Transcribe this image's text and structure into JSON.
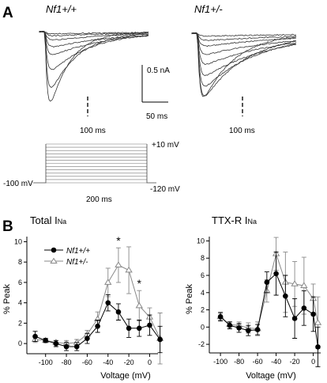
{
  "panelA": {
    "letter": "A",
    "genotype_left": "Nf1+/+",
    "genotype_right": "Nf1+/-",
    "marker_left": "100 ms",
    "marker_right": "100 ms",
    "scalebar_current": "0.5 nA",
    "scalebar_time": "50 ms",
    "protocol": {
      "top_label": "+10 mV",
      "holding_label": "-100 mV",
      "bottom_label": "-120 mV",
      "duration_label": "200 ms"
    }
  },
  "panelB": {
    "letter": "B",
    "significance_marker": "*"
  },
  "chart_data": [
    {
      "type": "line",
      "title": "Total INa",
      "title_main": "Total I",
      "title_sub": "Na",
      "xlabel": "Voltage (mV)",
      "ylabel": "% Peak",
      "xlim": [
        -118,
        8
      ],
      "ylim": [
        -1,
        10.5
      ],
      "xticks": [
        -100,
        -80,
        -60,
        -40,
        -20,
        0
      ],
      "yticks": [
        0,
        2,
        4,
        6,
        8,
        10
      ],
      "legend_position": "top-left",
      "significant_x": [
        -30,
        -10
      ],
      "series": [
        {
          "name": "Nf1+/+",
          "marker": "filled-circle",
          "color": "#000000",
          "x": [
            -110,
            -100,
            -90,
            -80,
            -70,
            -60,
            -50,
            -40,
            -30,
            -20,
            -10,
            0,
            10
          ],
          "y": [
            0.7,
            0.3,
            0.0,
            -0.3,
            -0.3,
            0.5,
            1.7,
            4.0,
            3.1,
            1.5,
            1.5,
            1.8,
            0.4
          ],
          "err": [
            0.5,
            0.2,
            0.3,
            0.4,
            0.4,
            0.5,
            0.6,
            0.8,
            0.8,
            0.9,
            0.8,
            1.0,
            1.3
          ]
        },
        {
          "name": "Nf1+/-",
          "marker": "open-triangle",
          "color": "#888888",
          "x": [
            -110,
            -100,
            -90,
            -80,
            -70,
            -60,
            -50,
            -40,
            -30,
            -20,
            -10,
            0,
            10
          ],
          "y": [
            0.4,
            0.3,
            0.1,
            0.0,
            0.1,
            0.9,
            2.4,
            6.0,
            7.7,
            7.2,
            3.7,
            2.6,
            0.5
          ],
          "err": [
            0.3,
            0.2,
            0.2,
            0.3,
            0.3,
            0.4,
            0.7,
            1.4,
            1.7,
            2.3,
            1.5,
            0.9,
            2.5
          ]
        }
      ]
    },
    {
      "type": "line",
      "title": "TTX-R INa",
      "title_main": "TTX-R I",
      "title_sub": "Na",
      "xlabel": "Voltage (mV)",
      "ylabel": "% Peak",
      "xlim": [
        -112,
        8
      ],
      "ylim": [
        -3,
        10.5
      ],
      "xticks": [
        -100,
        -80,
        -60,
        -40,
        -20,
        0
      ],
      "yticks": [
        -2,
        0,
        2,
        4,
        6,
        8,
        10
      ],
      "series": [
        {
          "name": "Nf1+/+",
          "marker": "filled-circle",
          "color": "#000000",
          "x": [
            -100,
            -90,
            -80,
            -70,
            -60,
            -50,
            -40,
            -30,
            -20,
            -10,
            0,
            5
          ],
          "y": [
            1.2,
            0.2,
            -0.1,
            -0.4,
            -0.3,
            5.2,
            6.2,
            3.6,
            1.0,
            2.2,
            1.5,
            -2.3
          ],
          "err": [
            0.5,
            0.4,
            0.5,
            0.6,
            0.6,
            1.2,
            2.5,
            2.4,
            2.3,
            2.0,
            2.0,
            2.3
          ]
        },
        {
          "name": "Nf1+/-",
          "marker": "open-triangle",
          "color": "#888888",
          "x": [
            -100,
            -90,
            -80,
            -70,
            -60,
            -50,
            -40,
            -30,
            -20,
            -10,
            0,
            5
          ],
          "y": [
            1.2,
            0.3,
            0.2,
            -0.1,
            -0.2,
            4.2,
            8.5,
            5.2,
            5.0,
            4.8,
            3.3,
            0.5
          ],
          "err": [
            0.4,
            0.3,
            0.4,
            0.6,
            0.8,
            1.3,
            1.9,
            3.5,
            2.6,
            3.3,
            1.7,
            3.0
          ]
        }
      ]
    }
  ]
}
